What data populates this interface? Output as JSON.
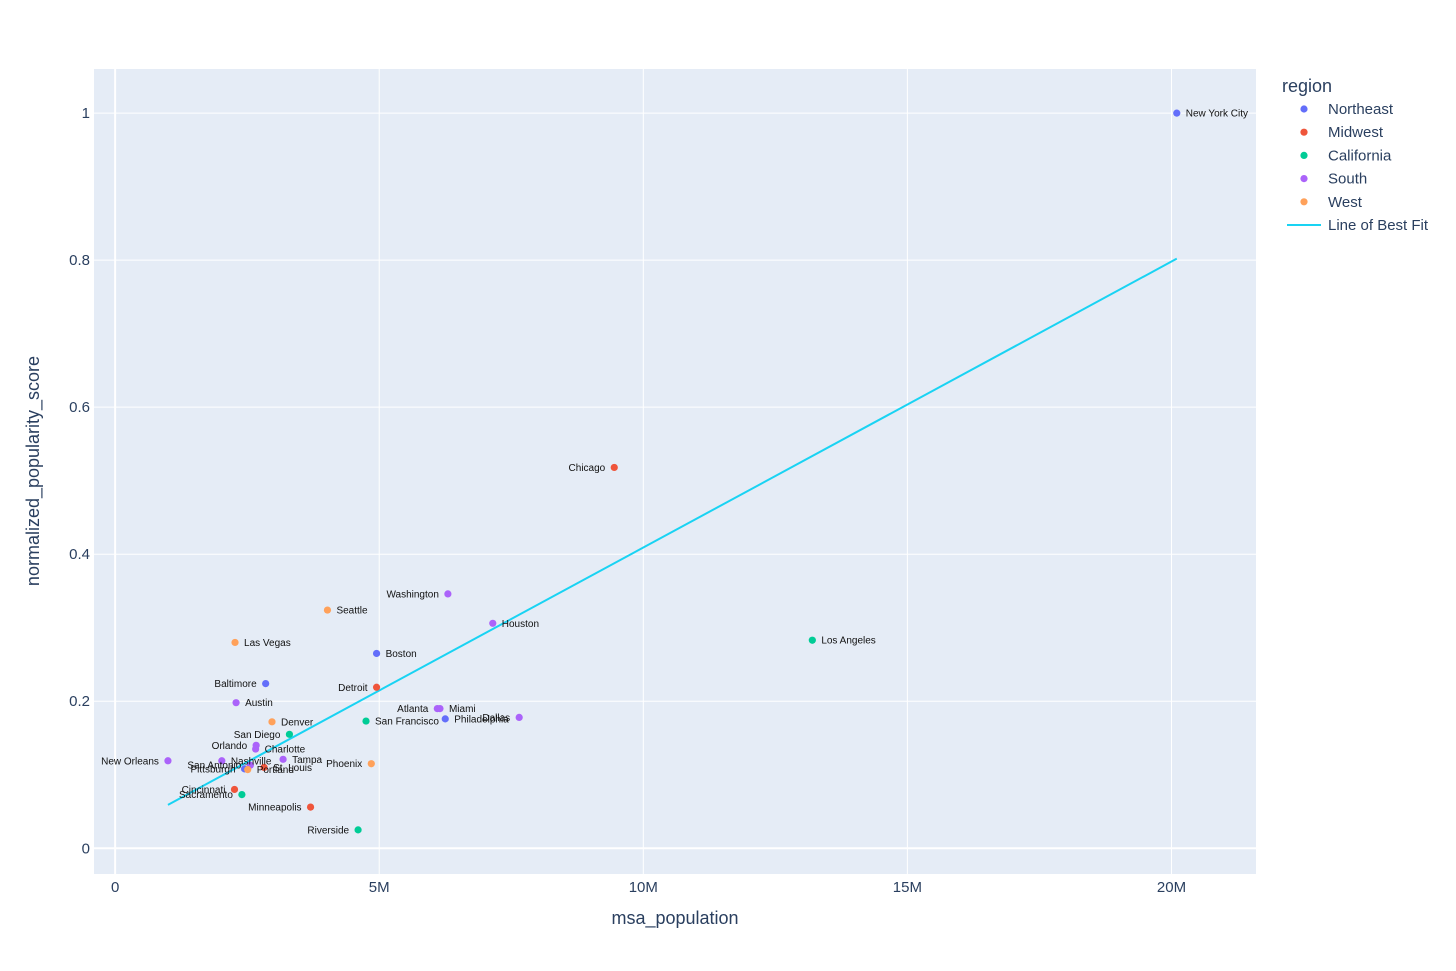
{
  "chart_data": {
    "type": "scatter",
    "xlabel": "msa_population",
    "ylabel": "normalized_popularity_score",
    "xlim": [
      -400000,
      21600000
    ],
    "ylim": [
      -0.035,
      1.06
    ],
    "x_ticks": [
      0,
      5000000,
      10000000,
      15000000,
      20000000
    ],
    "x_tick_labels": [
      "0",
      "5M",
      "10M",
      "15M",
      "20M"
    ],
    "y_ticks": [
      0,
      0.2,
      0.4,
      0.6,
      0.8,
      1
    ],
    "y_tick_labels": [
      "0",
      "0.2",
      "0.4",
      "0.6",
      "0.8",
      "1"
    ],
    "grid": true,
    "legend": {
      "title": "region",
      "placement": "right",
      "entries": [
        {
          "name": "Northeast",
          "color": "#636efa",
          "kind": "marker"
        },
        {
          "name": "Midwest",
          "color": "#ef553b",
          "kind": "marker"
        },
        {
          "name": "California",
          "color": "#00cc96",
          "kind": "marker"
        },
        {
          "name": "South",
          "color": "#ab63fa",
          "kind": "marker"
        },
        {
          "name": "West",
          "color": "#ffa15a",
          "kind": "marker"
        },
        {
          "name": "Line of Best Fit",
          "color": "#19d3f3",
          "kind": "line"
        }
      ]
    },
    "series": [
      {
        "name": "Northeast",
        "color": "#636efa",
        "points": [
          {
            "label": "New York City",
            "x": 20100000,
            "y": 1.0,
            "pos": "right"
          },
          {
            "label": "Boston",
            "x": 4950000,
            "y": 0.265,
            "pos": "right"
          },
          {
            "label": "Baltimore",
            "x": 2850000,
            "y": 0.224,
            "pos": "left"
          },
          {
            "label": "Philadelphia",
            "x": 6250000,
            "y": 0.176,
            "pos": "right"
          },
          {
            "label": "Pittsburgh",
            "x": 2450000,
            "y": 0.108,
            "pos": "left"
          }
        ]
      },
      {
        "name": "Midwest",
        "color": "#ef553b",
        "points": [
          {
            "label": "Chicago",
            "x": 9450000,
            "y": 0.518,
            "pos": "left"
          },
          {
            "label": "Detroit",
            "x": 4950000,
            "y": 0.219,
            "pos": "left"
          },
          {
            "label": "St. Louis",
            "x": 2820000,
            "y": 0.11,
            "pos": "right"
          },
          {
            "label": "Cincinnati",
            "x": 2260000,
            "y": 0.08,
            "pos": "left"
          },
          {
            "label": "Minneapolis",
            "x": 3700000,
            "y": 0.056,
            "pos": "left"
          }
        ]
      },
      {
        "name": "California",
        "color": "#00cc96",
        "points": [
          {
            "label": "Los Angeles",
            "x": 13200000,
            "y": 0.283,
            "pos": "right"
          },
          {
            "label": "San Francisco",
            "x": 4750000,
            "y": 0.173,
            "pos": "right"
          },
          {
            "label": "San Diego",
            "x": 3300000,
            "y": 0.155,
            "pos": "left"
          },
          {
            "label": "Sacramento",
            "x": 2400000,
            "y": 0.073,
            "pos": "left"
          },
          {
            "label": "Riverside",
            "x": 4600000,
            "y": 0.025,
            "pos": "left"
          }
        ]
      },
      {
        "name": "South",
        "color": "#ab63fa",
        "points": [
          {
            "label": "Washington",
            "x": 6300000,
            "y": 0.346,
            "pos": "left"
          },
          {
            "label": "Houston",
            "x": 7150000,
            "y": 0.306,
            "pos": "right"
          },
          {
            "label": "Austin",
            "x": 2290000,
            "y": 0.198,
            "pos": "right"
          },
          {
            "label": "Atlanta",
            "x": 6100000,
            "y": 0.19,
            "pos": "left"
          },
          {
            "label": "Miami",
            "x": 6150000,
            "y": 0.19,
            "pos": "right"
          },
          {
            "label": "Dallas",
            "x": 7650000,
            "y": 0.178,
            "pos": "left"
          },
          {
            "label": "Orlando",
            "x": 2670000,
            "y": 0.14,
            "pos": "left"
          },
          {
            "label": "Charlotte",
            "x": 2660000,
            "y": 0.135,
            "pos": "right"
          },
          {
            "label": "Tampa",
            "x": 3180000,
            "y": 0.121,
            "pos": "right"
          },
          {
            "label": "New Orleans",
            "x": 1000000,
            "y": 0.119,
            "pos": "left"
          },
          {
            "label": "Nashville",
            "x": 2020000,
            "y": 0.119,
            "pos": "right"
          },
          {
            "label": "San Antonio",
            "x": 2560000,
            "y": 0.113,
            "pos": "left"
          }
        ]
      },
      {
        "name": "West",
        "color": "#ffa15a",
        "points": [
          {
            "label": "Seattle",
            "x": 4020000,
            "y": 0.324,
            "pos": "right"
          },
          {
            "label": "Las Vegas",
            "x": 2270000,
            "y": 0.28,
            "pos": "right"
          },
          {
            "label": "Denver",
            "x": 2970000,
            "y": 0.172,
            "pos": "right"
          },
          {
            "label": "Phoenix",
            "x": 4850000,
            "y": 0.115,
            "pos": "left"
          },
          {
            "label": "Portland",
            "x": 2510000,
            "y": 0.107,
            "pos": "right"
          }
        ]
      }
    ],
    "line": {
      "name": "Line of Best Fit",
      "color": "#19d3f3",
      "x": [
        1000000,
        20100000
      ],
      "y": [
        0.059,
        0.802
      ]
    }
  }
}
